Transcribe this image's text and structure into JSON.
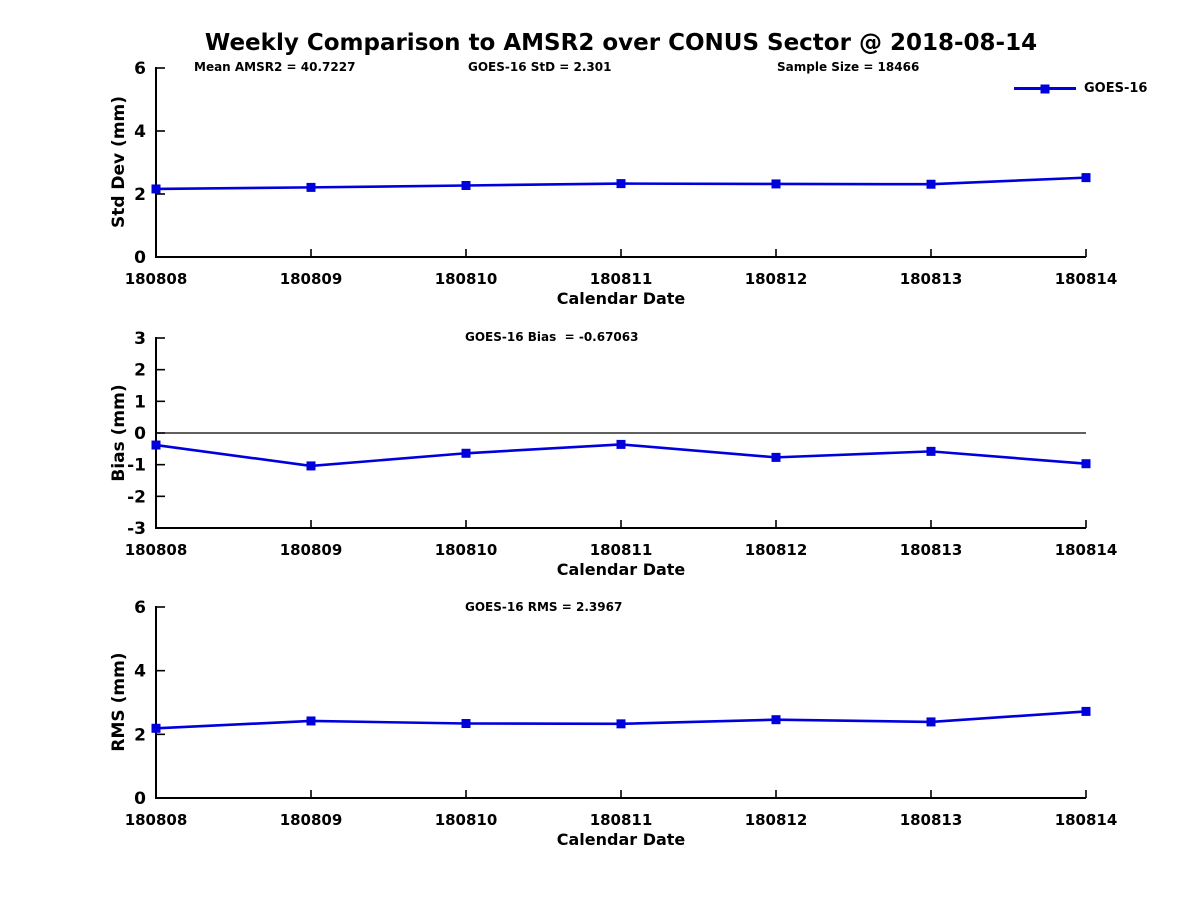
{
  "title": "Weekly Comparison to AMSR2 over CONUS Sector @ 2018-08-14",
  "xlabel": "Calendar Date",
  "legend": {
    "label": "GOES-16",
    "series_color": "#0000DD",
    "axis_color": "#000000"
  },
  "categories": [
    "180808",
    "180809",
    "180810",
    "180811",
    "180812",
    "180813",
    "180814"
  ],
  "chart_data": [
    {
      "type": "line",
      "series_name": "GOES-16",
      "ylabel": "Std Dev (mm)",
      "ylim": [
        0,
        6
      ],
      "yticks": [
        0,
        2,
        4,
        6
      ],
      "values": [
        2.16,
        2.21,
        2.27,
        2.33,
        2.32,
        2.31,
        2.52
      ],
      "annotations": [
        "Mean AMSR2 = 40.7227",
        "GOES-16 StD = 2.301",
        "Sample Size = 18466"
      ],
      "zero_line": false,
      "grid": false
    },
    {
      "type": "line",
      "series_name": "GOES-16",
      "ylabel": "Bias (mm)",
      "ylim": [
        -3,
        3
      ],
      "yticks": [
        3,
        2,
        1,
        0,
        -1,
        -2,
        -3
      ],
      "values": [
        -0.38,
        -1.04,
        -0.64,
        -0.36,
        -0.77,
        -0.58,
        -0.97
      ],
      "annotations": [
        "GOES-16 Bias  = -0.67063"
      ],
      "zero_line": true,
      "grid": false
    },
    {
      "type": "line",
      "series_name": "GOES-16",
      "ylabel": "RMS (mm)",
      "ylim": [
        0,
        6
      ],
      "yticks": [
        0,
        2,
        4,
        6
      ],
      "values": [
        2.19,
        2.42,
        2.34,
        2.33,
        2.46,
        2.39,
        2.72
      ],
      "annotations": [
        "GOES-16 RMS = 2.3967"
      ],
      "zero_line": false,
      "grid": false
    }
  ]
}
